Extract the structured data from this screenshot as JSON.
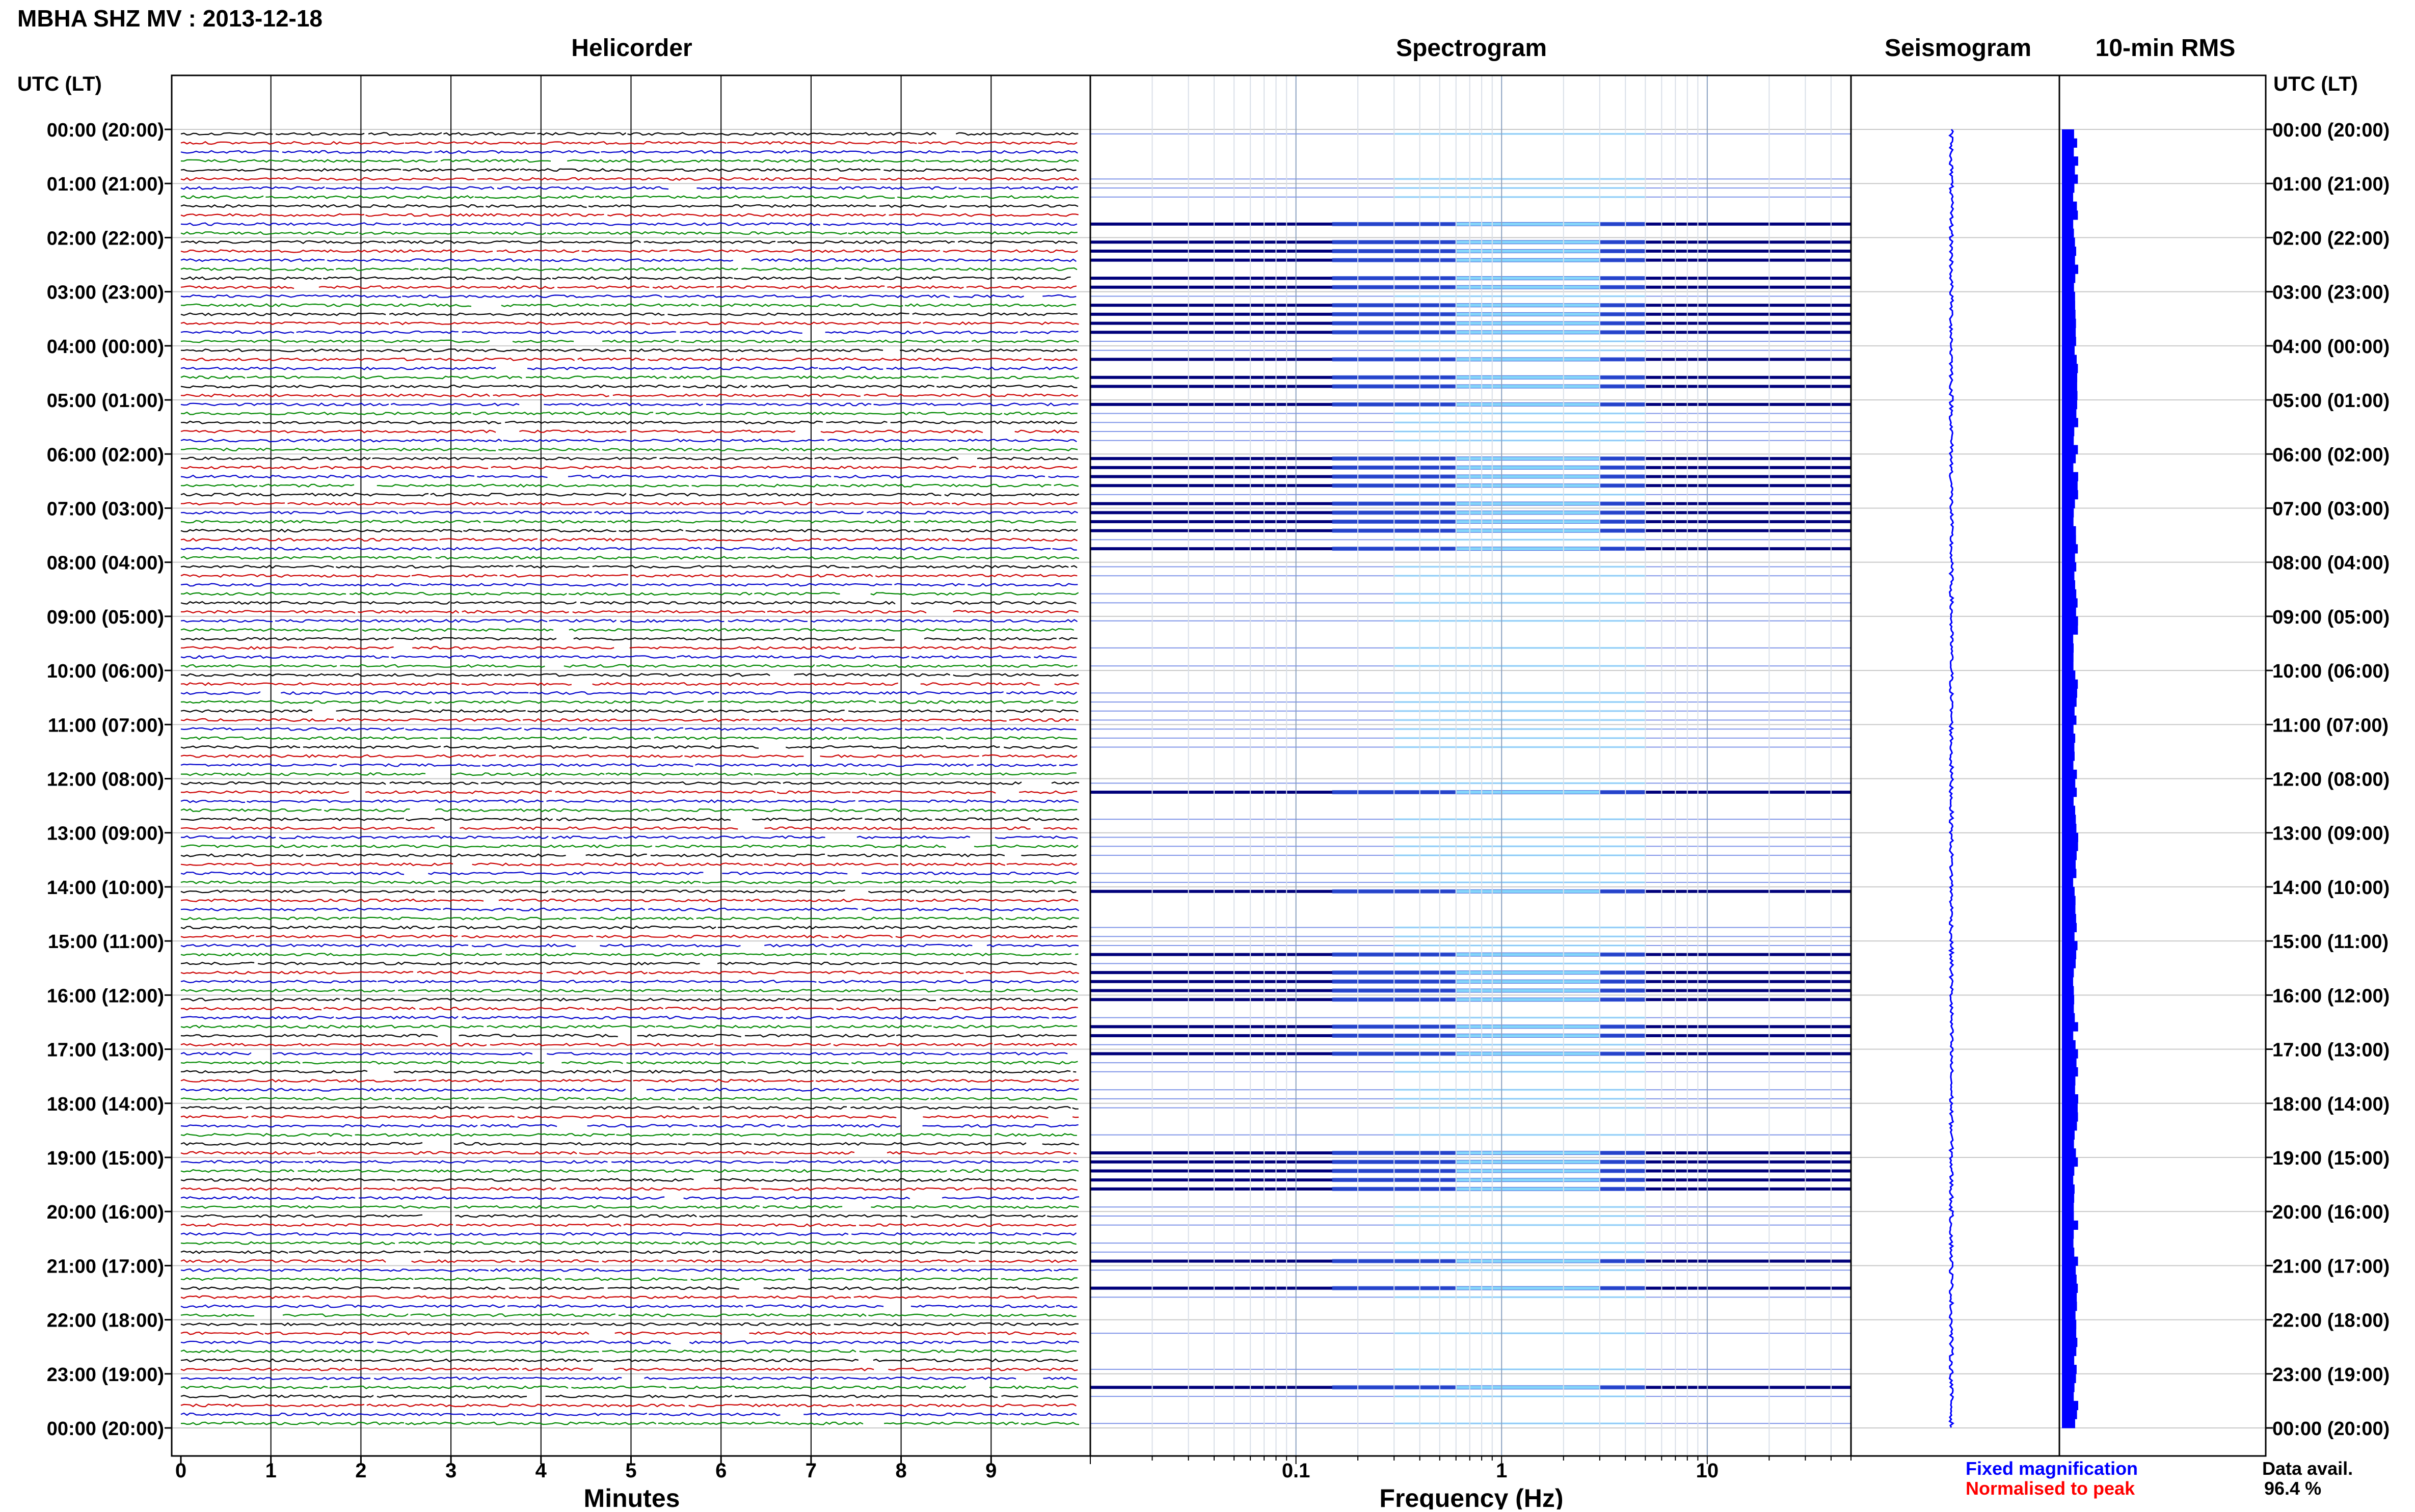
{
  "page": {
    "title": "MBHA SHZ MV : 2013-12-18",
    "left_axis_header": "UTC (LT)",
    "right_axis_header": "UTC (LT)"
  },
  "panels": {
    "helicorder": "Helicorder",
    "spectrogram": "Spectrogram",
    "seismogram": "Seismogram",
    "rms": "10-min RMS"
  },
  "colors": {
    "helicorder_traces": [
      "#000000",
      "#cc0000",
      "#0000cc",
      "#008800"
    ],
    "spectrogram_high": "#00007a",
    "spectrogram_mid": "#2b4fd8",
    "spectrogram_low": "#8fe6ff",
    "seismogram": "#0000ff",
    "rms": "#0000ff",
    "grid": "#c8c8c8",
    "fixed_magnification": "#0000ff",
    "normalised_to_peak": "#ff0000"
  },
  "legend": {
    "fixed": "Fixed magnification",
    "normalised": "Normalised to peak",
    "data_avail_label": "Data avail.",
    "data_avail_value": "96.4 %"
  },
  "chart_data": [
    {
      "type": "line",
      "title": "Helicorder",
      "xlabel": "Minutes",
      "xticks": [
        "0",
        "1",
        "2",
        "3",
        "4",
        "5",
        "6",
        "7",
        "8",
        "9"
      ],
      "xlim": [
        0,
        10
      ],
      "traces_per_hour": 6,
      "hours": 24,
      "gap_traces_note": "white gaps scattered, more frequent after 08:00 UTC",
      "ylabels": [
        "00:00 (20:00)",
        "01:00 (21:00)",
        "02:00 (22:00)",
        "03:00 (23:00)",
        "04:00 (00:00)",
        "05:00 (01:00)",
        "06:00 (02:00)",
        "07:00 (03:00)",
        "08:00 (04:00)",
        "09:00 (05:00)",
        "10:00 (06:00)",
        "11:00 (07:00)",
        "12:00 (08:00)",
        "13:00 (09:00)",
        "14:00 (10:00)",
        "15:00 (11:00)",
        "16:00 (12:00)",
        "17:00 (13:00)",
        "18:00 (14:00)",
        "19:00 (15:00)",
        "20:00 (16:00)",
        "21:00 (17:00)",
        "22:00 (18:00)",
        "23:00 (19:00)",
        "00:00 (20:00)"
      ]
    },
    {
      "type": "heatmap",
      "title": "Spectrogram",
      "xlabel": "Frequency (Hz)",
      "xscale": "log",
      "xlim": [
        0.01,
        50
      ],
      "xticks": [
        "0.1",
        "1",
        "10"
      ],
      "peak_band_hz": [
        0.15,
        5
      ],
      "high_energy_hours_utc": [
        2,
        3,
        4,
        6,
        7,
        15,
        16,
        19
      ]
    },
    {
      "type": "line",
      "title": "Seismogram",
      "note": "single narrow vertical blue trace spanning 00:00-24:00"
    },
    {
      "type": "bar",
      "title": "10-min RMS",
      "orientation": "horizontal",
      "note": "narrow, nearly constant blue bars for every 10-minute window"
    }
  ]
}
